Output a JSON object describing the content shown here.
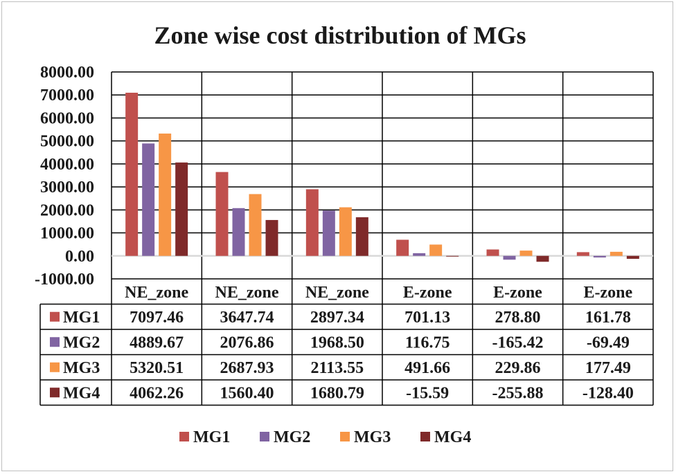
{
  "chart_data": {
    "type": "bar",
    "title": "Zone wise cost distribution of MGs",
    "xlabel": "",
    "ylabel": "",
    "categories": [
      "NE_zone",
      "NE_zone",
      "NE_zone",
      "E-zone",
      "E-zone",
      "E-zone"
    ],
    "ylim": [
      -1000,
      8000
    ],
    "ytick_step": 1000,
    "ytick_labels": [
      "8000.00",
      "7000.00",
      "6000.00",
      "5000.00",
      "4000.00",
      "3000.00",
      "2000.00",
      "1000.00",
      "0.00",
      "-1000.00"
    ],
    "grid": true,
    "legend_position": "bottom",
    "data_table": true,
    "series": [
      {
        "name": "MG1",
        "color": "#c0504d",
        "values": [
          7097.46,
          3647.74,
          2897.34,
          701.13,
          278.8,
          161.78
        ],
        "labels": [
          "7097.46",
          "3647.74",
          "2897.34",
          "701.13",
          "278.80",
          "161.78"
        ]
      },
      {
        "name": "MG2",
        "color": "#8064a2",
        "values": [
          4889.67,
          2076.86,
          1968.5,
          116.75,
          -165.42,
          -69.49
        ],
        "labels": [
          "4889.67",
          "2076.86",
          "1968.50",
          "116.75",
          "-165.42",
          "-69.49"
        ]
      },
      {
        "name": "MG3",
        "color": "#f79646",
        "values": [
          5320.51,
          2687.93,
          2113.55,
          491.66,
          229.86,
          177.49
        ],
        "labels": [
          "5320.51",
          "2687.93",
          "2113.55",
          "491.66",
          "229.86",
          "177.49"
        ]
      },
      {
        "name": "MG4",
        "color": "#7f2a2a",
        "values": [
          4062.26,
          1560.4,
          1680.79,
          -15.59,
          -255.88,
          -128.4
        ],
        "labels": [
          "4062.26",
          "1560.40",
          "1680.79",
          "-15.59",
          "-255.88",
          "-128.40"
        ]
      }
    ]
  }
}
